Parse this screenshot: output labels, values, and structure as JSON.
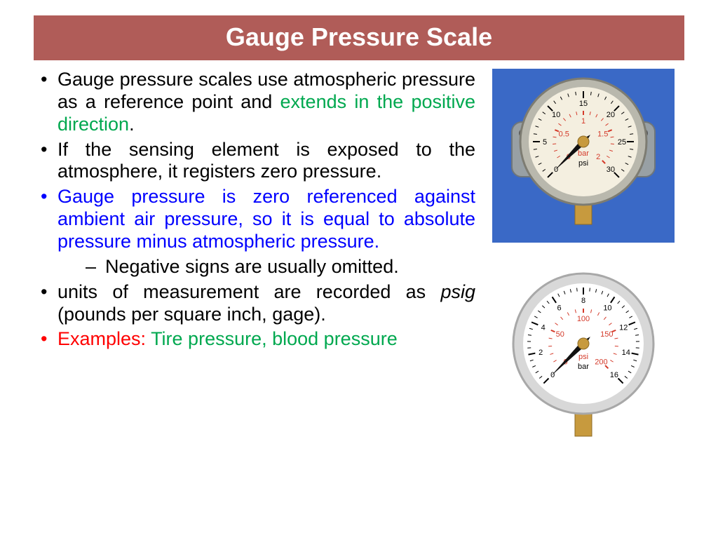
{
  "title": "Gauge Pressure Scale",
  "bullets": {
    "b1a": "Gauge pressure scales use atmospheric pressure as a reference point and ",
    "b1b": "extends in the positive direction",
    "b1c": ".",
    "b2": "If the sensing element is exposed to the atmosphere, it registers zero pressure.",
    "b3": "Gauge pressure is zero referenced against ambient air pressure, so it is equal to absolute pressure minus atmospheric pressure.",
    "sub1": "Negative signs are usually omitted.",
    "b4a": "units of measurement are recorded as ",
    "b4b": "psig",
    "b4c": " (pounds per square inch, gage).",
    "b5a": "Examples: ",
    "b5b": "Tire pressure, blood pressure"
  },
  "colors": {
    "title_bg": "#b05c58",
    "title_fg": "#ffffff",
    "black": "#000000",
    "blue": "#0000ff",
    "green": "#00a84f",
    "red": "#ff0000",
    "img1_bg": "#3a69c6",
    "gauge_face": "#f4efe0",
    "gauge_rim": "#b9b8ad",
    "gauge_red": "#d43a2a",
    "gauge_brass": "#c79a3e",
    "gauge2_rim": "#d8d8d8",
    "gauge2_face": "#ffffff"
  },
  "gauge1": {
    "unit_top": "bar",
    "unit_bottom": "psi",
    "outer_ticks": [
      "0",
      "5",
      "10",
      "15",
      "20",
      "25",
      "30"
    ],
    "inner_ticks": [
      "0",
      "0.5",
      "1",
      "1.5",
      "2"
    ],
    "needle_angle_deg": 225
  },
  "gauge2": {
    "unit_top": "psi",
    "unit_bottom": "bar",
    "outer_ticks": [
      "0",
      "2",
      "4",
      "6",
      "8",
      "10",
      "12",
      "14",
      "16"
    ],
    "inner_ticks": [
      "0",
      "50",
      "100",
      "150",
      "200"
    ],
    "needle_angle_deg": 225
  }
}
